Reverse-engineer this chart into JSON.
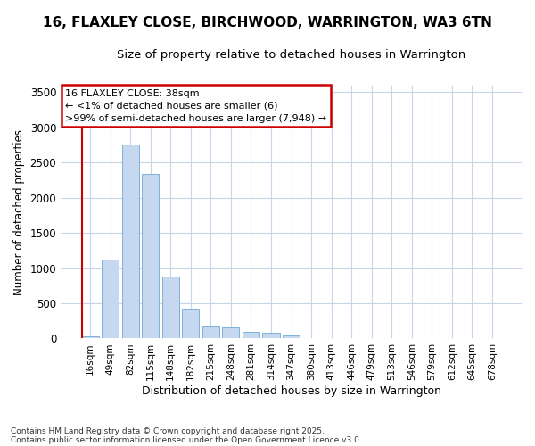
{
  "title1": "16, FLAXLEY CLOSE, BIRCHWOOD, WARRINGTON, WA3 6TN",
  "title2": "Size of property relative to detached houses in Warrington",
  "xlabel": "Distribution of detached houses by size in Warrington",
  "ylabel": "Number of detached properties",
  "categories": [
    "16sqm",
    "49sqm",
    "82sqm",
    "115sqm",
    "148sqm",
    "182sqm",
    "215sqm",
    "248sqm",
    "281sqm",
    "314sqm",
    "347sqm",
    "380sqm",
    "413sqm",
    "446sqm",
    "479sqm",
    "513sqm",
    "546sqm",
    "579sqm",
    "612sqm",
    "645sqm",
    "678sqm"
  ],
  "values": [
    30,
    1120,
    2760,
    2340,
    880,
    430,
    170,
    160,
    95,
    85,
    45,
    0,
    0,
    0,
    0,
    0,
    0,
    0,
    0,
    0,
    0
  ],
  "bar_color": "#c5d8f0",
  "bar_edge_color": "#6fa8d4",
  "highlight_color": "#cc0000",
  "ylim": [
    0,
    3600
  ],
  "yticks": [
    0,
    500,
    1000,
    1500,
    2000,
    2500,
    3000,
    3500
  ],
  "annotation_title": "16 FLAXLEY CLOSE: 38sqm",
  "annotation_line1": "← <1% of detached houses are smaller (6)",
  "annotation_line2": ">99% of semi-detached houses are larger (7,948) →",
  "annotation_box_facecolor": "#ffffff",
  "annotation_border_color": "#cc0000",
  "grid_color": "#c8d4e8",
  "bg_color": "#ffffff",
  "plot_bg_color": "#ffffff",
  "footer1": "Contains HM Land Registry data © Crown copyright and database right 2025.",
  "footer2": "Contains public sector information licensed under the Open Government Licence v3.0.",
  "title_fontsize": 11,
  "subtitle_fontsize": 9.5
}
